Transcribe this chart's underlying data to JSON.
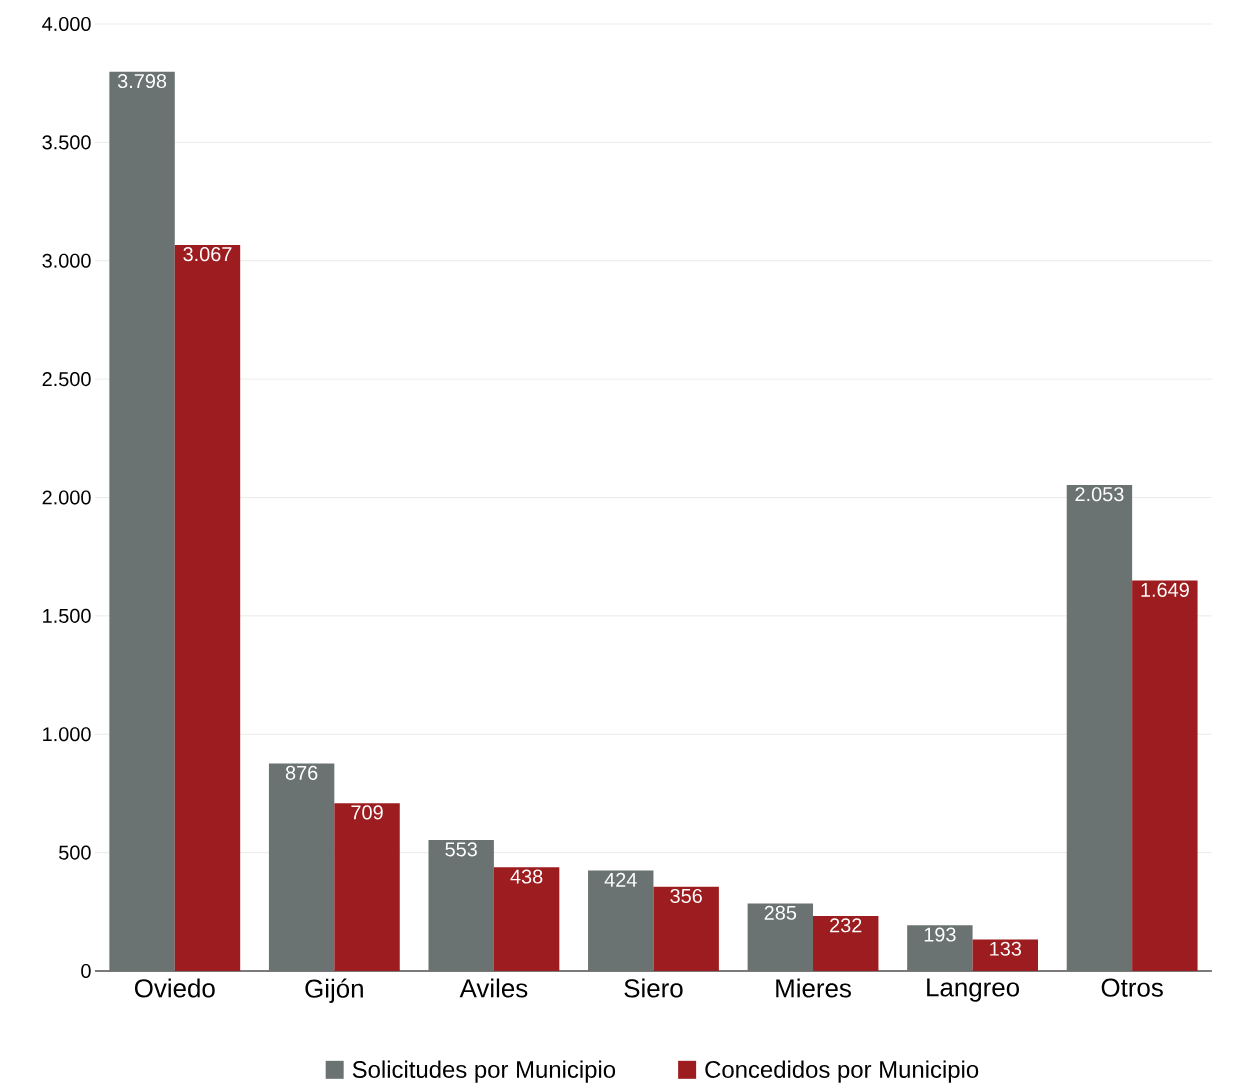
{
  "chart_data": {
    "type": "bar",
    "categories": [
      "Oviedo",
      "Gijón",
      "Aviles",
      "Siero",
      "Mieres",
      "Langreo",
      "Otros"
    ],
    "series": [
      {
        "name": "Solicitudes por Municipio",
        "color": "#6b7372",
        "values": [
          3798,
          876,
          553,
          424,
          285,
          193,
          2053
        ],
        "value_labels": [
          "3.798",
          "876",
          "553",
          "424",
          "285",
          "193",
          "2.053"
        ]
      },
      {
        "name": "Concedidos por Municipio",
        "color": "#9c1c1f",
        "values": [
          3067,
          709,
          438,
          356,
          232,
          133,
          1649
        ],
        "value_labels": [
          "3.067",
          "709",
          "438",
          "356",
          "232",
          "133",
          "1.649"
        ]
      }
    ],
    "ylim": [
      0,
      4000
    ],
    "yticks": [
      {
        "value": 0,
        "label": "0"
      },
      {
        "value": 500,
        "label": "500"
      },
      {
        "value": 1000,
        "label": "1.000"
      },
      {
        "value": 1500,
        "label": "1.500"
      },
      {
        "value": 2000,
        "label": "2.000"
      },
      {
        "value": 2500,
        "label": "2.500"
      },
      {
        "value": 3000,
        "label": "3.000"
      },
      {
        "value": 3500,
        "label": "3.500"
      },
      {
        "value": 4000,
        "label": "4.000"
      }
    ],
    "grid": "y",
    "legend": "bottom"
  }
}
